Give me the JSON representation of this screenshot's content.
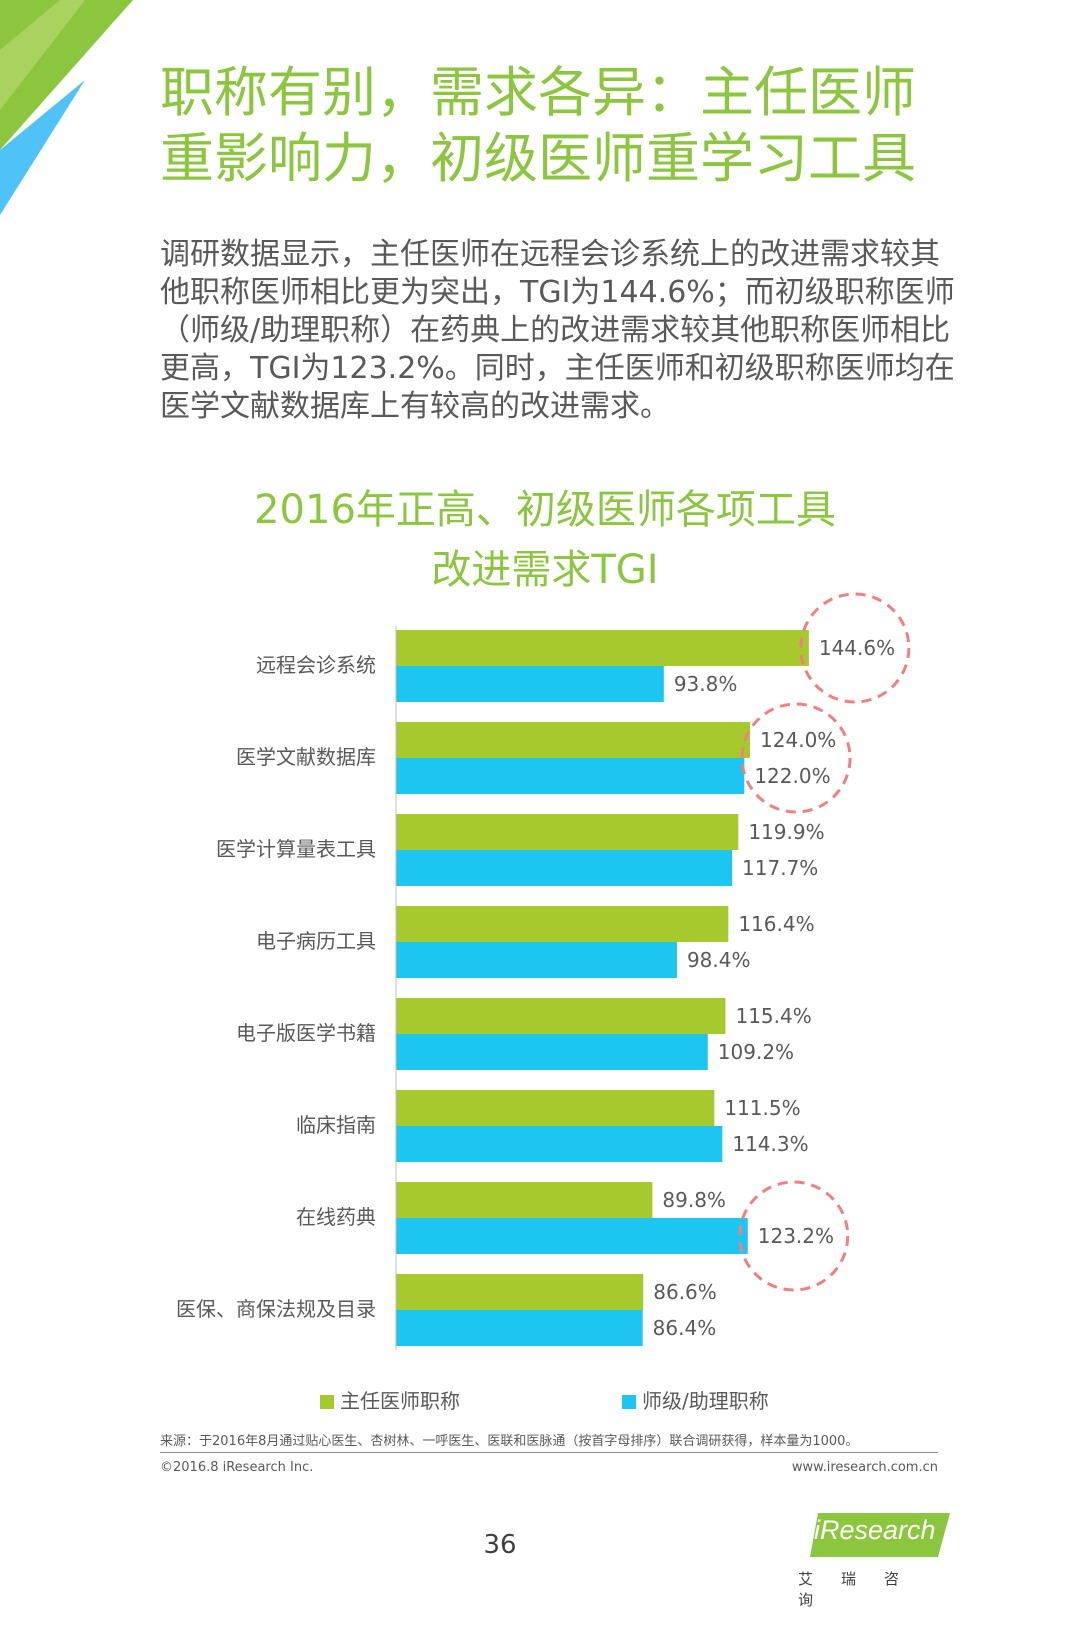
{
  "header": {
    "headline_line1": "职称有别，需求各异：主任医师",
    "headline_line2": "重影响力，初级医师重学习工具"
  },
  "body": {
    "text": "调研数据显示，主任医师在远程会诊系统上的改进需求较其他职称医师相比更为突出，TGI为144.6%；而初级职称医师（师级/助理职称）在药典上的改进需求较其他职称医师相比更高，TGI为123.2%。同时，主任医师和初级职称医师均在医学文献数据库上有较高的改进需求。"
  },
  "colors": {
    "accent_green": "#8cc63f",
    "bar_green": "#a6c92d",
    "bar_blue": "#1dc6f0",
    "highlight_circle": "#f08080"
  },
  "chart_data": {
    "type": "bar",
    "orientation": "horizontal",
    "title_line1": "2016年正高、初级医师各项工具",
    "title_line2": "改进需求TGI",
    "categories": [
      "远程会诊系统",
      "医学文献数据库",
      "医学计算量表工具",
      "电子病历工具",
      "电子版医学书籍",
      "临床指南",
      "在线药典",
      "医保、商保法规及目录"
    ],
    "series": [
      {
        "name": "主任医师职称",
        "values": [
          144.6,
          124.0,
          119.9,
          116.4,
          115.4,
          111.5,
          89.8,
          86.6
        ],
        "labels": [
          "144.6%",
          "124.0%",
          "119.9%",
          "116.4%",
          "115.4%",
          "111.5%",
          "89.8%",
          "86.6%"
        ]
      },
      {
        "name": "师级/助理职称",
        "values": [
          93.8,
          122.0,
          117.7,
          98.4,
          109.2,
          114.3,
          123.2,
          86.4
        ],
        "labels": [
          "93.8%",
          "122.0%",
          "117.7%",
          "98.4%",
          "109.2%",
          "114.3%",
          "123.2%",
          "86.4%"
        ]
      }
    ],
    "highlighted": [
      {
        "category": "远程会诊系统",
        "series": "主任医师职称"
      },
      {
        "category": "医学文献数据库",
        "series": "both"
      },
      {
        "category": "在线药典",
        "series": "师级/助理职称"
      }
    ],
    "legend_position": "bottom",
    "xlabel": "",
    "ylabel": "",
    "xlim": [
      0,
      145
    ]
  },
  "footer": {
    "source": "来源：于2016年8月通过贴心医生、杏树林、一呼医生、医联和医脉通（按首字母排序）联合调研获得，样本量为1000。",
    "copyright": "©2016.8  iResearch Inc.",
    "website": "www.iresearch.com.cn",
    "page_number": "36",
    "logo_text": "iResearch",
    "logo_subtitle": "艾瑞咨询"
  }
}
